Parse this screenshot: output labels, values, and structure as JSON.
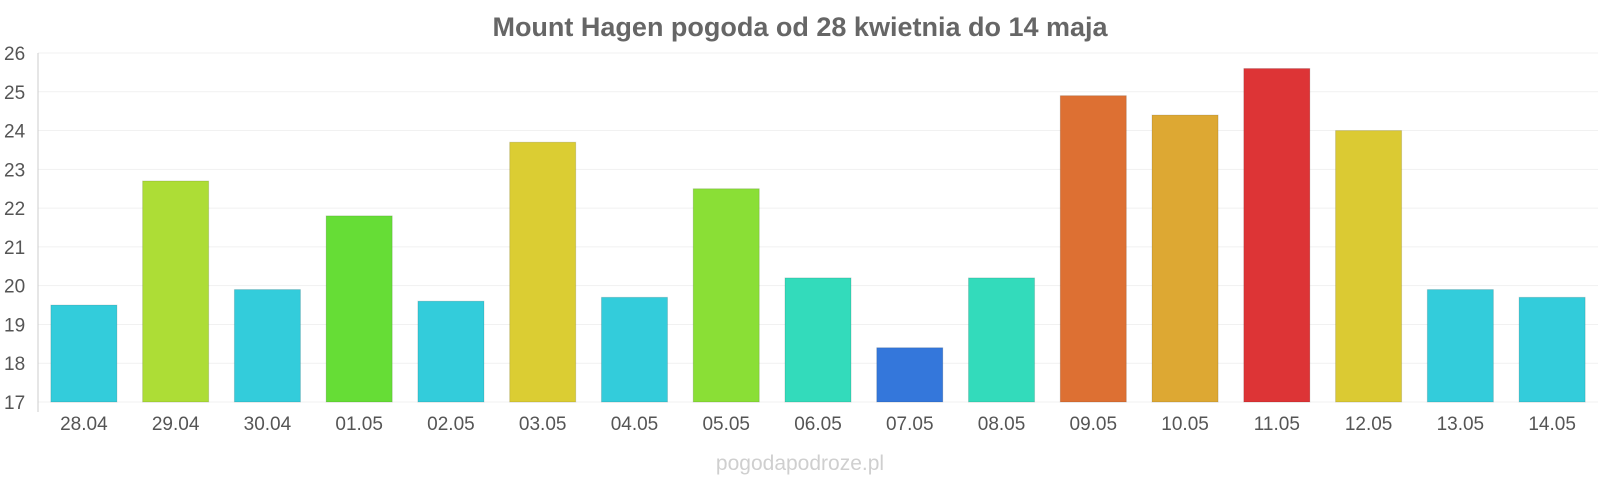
{
  "chart_data": {
    "type": "bar",
    "title": "Mount Hagen pogoda od 28 kwietnia do 14 maja",
    "xlabel": "",
    "ylabel": "",
    "ylim": [
      17,
      26
    ],
    "yticks": [
      17,
      18,
      19,
      20,
      21,
      22,
      23,
      24,
      25,
      26
    ],
    "grid": true,
    "categories": [
      "28.04",
      "29.04",
      "30.04",
      "01.05",
      "02.05",
      "03.05",
      "04.05",
      "05.05",
      "06.05",
      "07.05",
      "08.05",
      "09.05",
      "10.05",
      "11.05",
      "12.05",
      "13.05",
      "14.05"
    ],
    "values": [
      19.5,
      22.7,
      19.9,
      21.8,
      19.6,
      23.7,
      19.7,
      22.5,
      20.2,
      18.4,
      20.2,
      24.9,
      24.4,
      25.6,
      24.0,
      19.9,
      19.7
    ],
    "colors": [
      "#33ccdb",
      "#addd36",
      "#33ccdb",
      "#66dd36",
      "#33ccdb",
      "#dbcd33",
      "#33ccdb",
      "#8adf36",
      "#33dbbb",
      "#3477db",
      "#33dbbb",
      "#dd7033",
      "#dda833",
      "#dd3436",
      "#dbca33",
      "#33ccdb",
      "#33ccdb"
    ]
  },
  "watermark": "pogodapodroze.pl"
}
